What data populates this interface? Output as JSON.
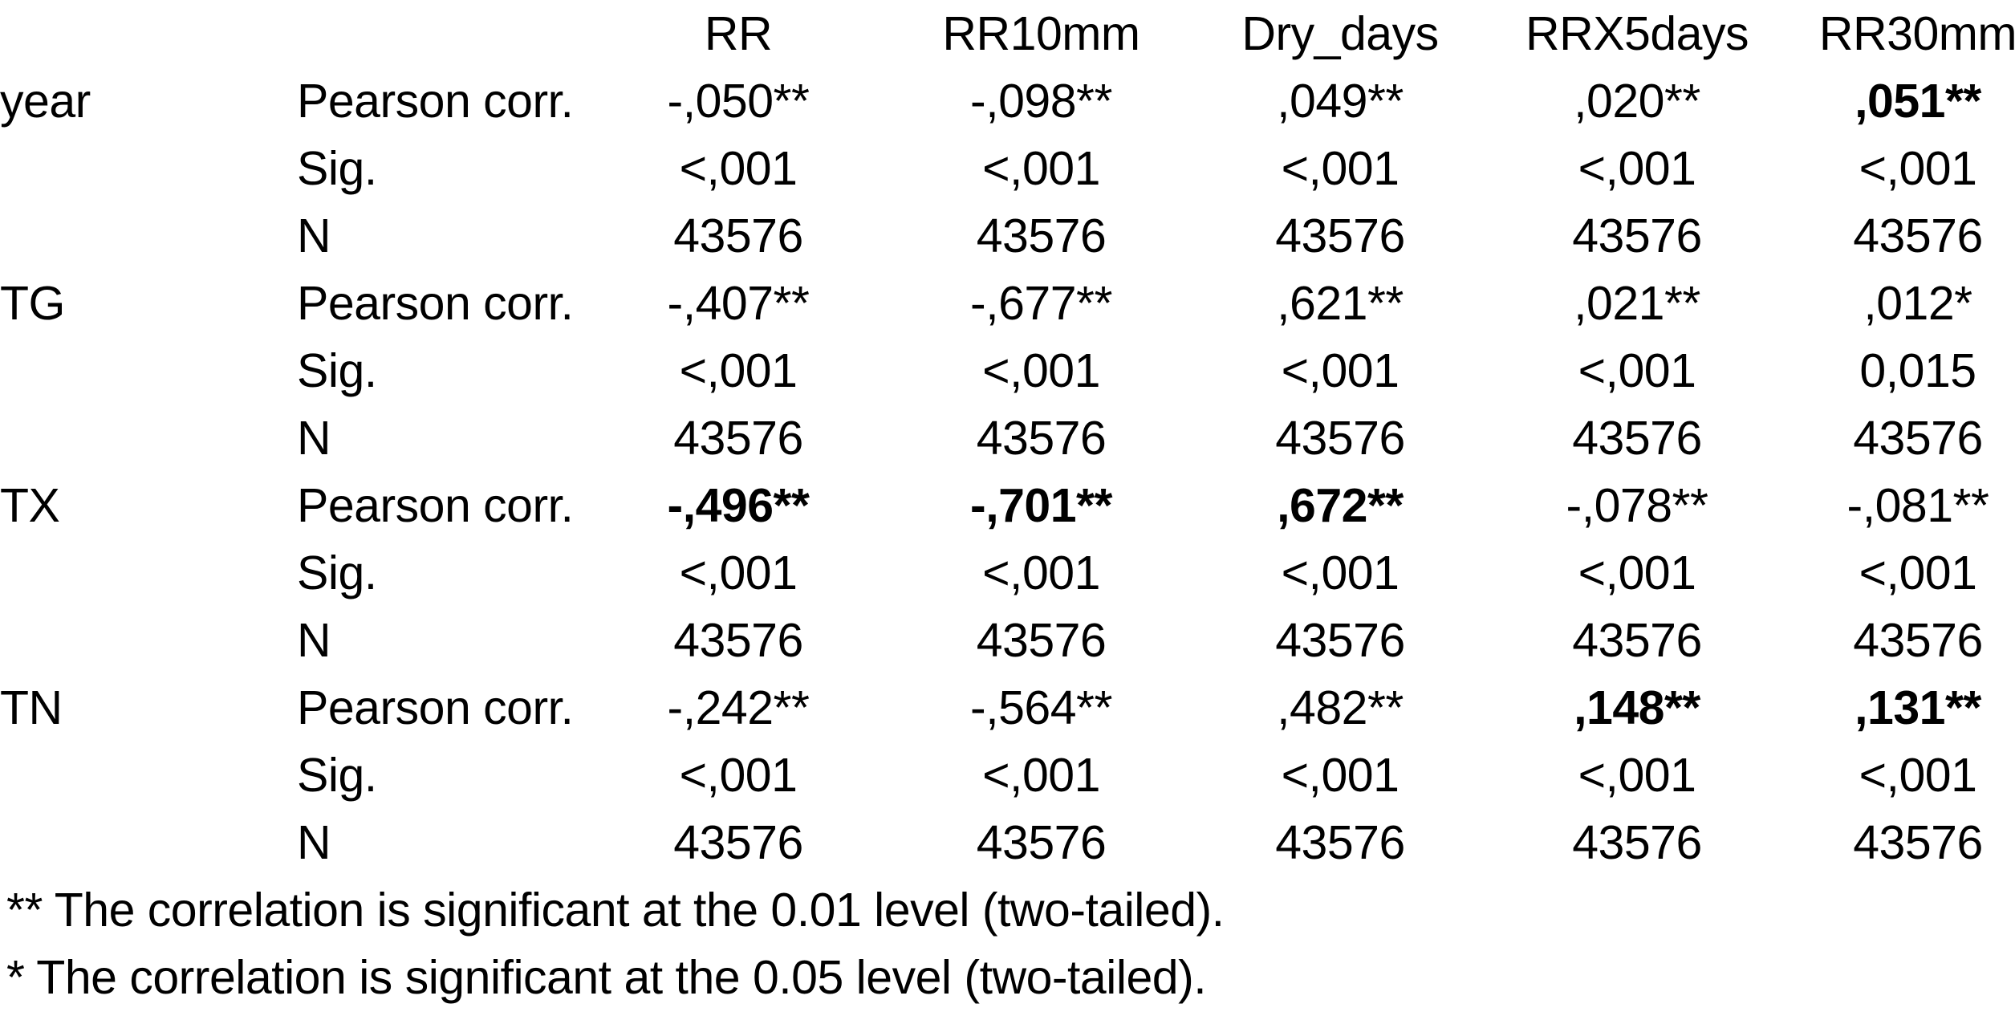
{
  "colors": {
    "background": "#ffffff",
    "text": "#000000"
  },
  "chart_data": {
    "type": "table",
    "columns": [
      "RR",
      "RR10mm",
      "Dry_days",
      "RRX5days",
      "RR30mm"
    ],
    "corner_labels": [
      "",
      ""
    ],
    "rows": [
      {
        "variable": "year",
        "stat": "Pearson corr.",
        "values": [
          "-,050**",
          "-,098**",
          ",049**",
          ",020**",
          ",051**"
        ],
        "bold": [
          false,
          false,
          false,
          false,
          true
        ]
      },
      {
        "variable": "",
        "stat": "Sig.",
        "values": [
          "<,001",
          "<,001",
          "<,001",
          "<,001",
          "<,001"
        ],
        "bold": [
          false,
          false,
          false,
          false,
          false
        ]
      },
      {
        "variable": "",
        "stat": "N",
        "values": [
          "43576",
          "43576",
          "43576",
          "43576",
          "43576"
        ],
        "bold": [
          false,
          false,
          false,
          false,
          false
        ]
      },
      {
        "variable": "TG",
        "stat": "Pearson corr.",
        "values": [
          "-,407**",
          "-,677**",
          ",621**",
          ",021**",
          ",012*"
        ],
        "bold": [
          false,
          false,
          false,
          false,
          false
        ]
      },
      {
        "variable": "",
        "stat": "Sig.",
        "values": [
          "<,001",
          "<,001",
          "<,001",
          "<,001",
          "0,015"
        ],
        "bold": [
          false,
          false,
          false,
          false,
          false
        ]
      },
      {
        "variable": "",
        "stat": "N",
        "values": [
          "43576",
          "43576",
          "43576",
          "43576",
          "43576"
        ],
        "bold": [
          false,
          false,
          false,
          false,
          false
        ]
      },
      {
        "variable": "TX",
        "stat": "Pearson corr.",
        "values": [
          "-,496**",
          "-,701**",
          ",672**",
          "-,078**",
          "-,081**"
        ],
        "bold": [
          true,
          true,
          true,
          false,
          false
        ]
      },
      {
        "variable": "",
        "stat": "Sig.",
        "values": [
          "<,001",
          "<,001",
          "<,001",
          "<,001",
          "<,001"
        ],
        "bold": [
          false,
          false,
          false,
          false,
          false
        ]
      },
      {
        "variable": "",
        "stat": "N",
        "values": [
          "43576",
          "43576",
          "43576",
          "43576",
          "43576"
        ],
        "bold": [
          false,
          false,
          false,
          false,
          false
        ]
      },
      {
        "variable": "TN",
        "stat": "Pearson corr.",
        "values": [
          "-,242**",
          "-,564**",
          ",482**",
          ",148**",
          ",131**"
        ],
        "bold": [
          false,
          false,
          false,
          true,
          true
        ]
      },
      {
        "variable": "",
        "stat": "Sig.",
        "values": [
          "<,001",
          "<,001",
          "<,001",
          "<,001",
          "<,001"
        ],
        "bold": [
          false,
          false,
          false,
          false,
          false
        ]
      },
      {
        "variable": "",
        "stat": "N",
        "values": [
          "43576",
          "43576",
          "43576",
          "43576",
          "43576"
        ],
        "bold": [
          false,
          false,
          false,
          false,
          false
        ]
      }
    ],
    "footnotes": [
      "** The correlation is significant at the 0.01 level (two-tailed).",
      "* The correlation is significant at the 0.05 level (two-tailed)."
    ]
  }
}
